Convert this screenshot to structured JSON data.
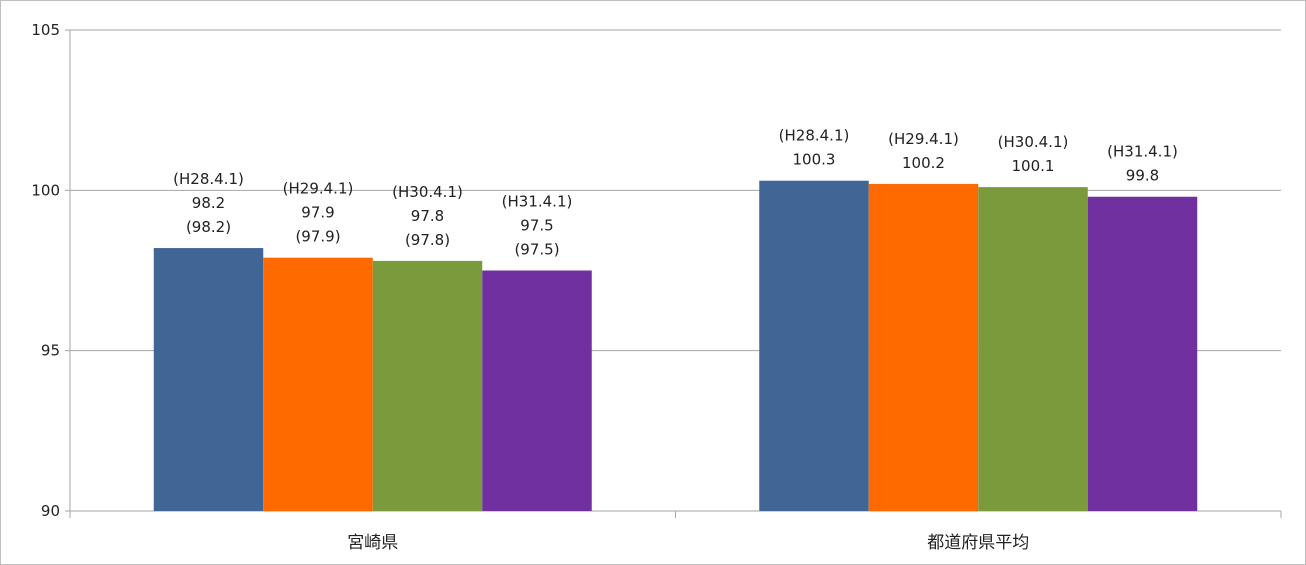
{
  "chart_data": {
    "type": "bar",
    "title": "",
    "xlabel": "",
    "ylabel": "",
    "ylim": [
      90,
      105
    ],
    "yticks": [
      90,
      95,
      100,
      105
    ],
    "grid": true,
    "legend": "none",
    "categories": [
      "宮崎県",
      "都道府県平均"
    ],
    "series": [
      {
        "color": "#3f6695",
        "values": [
          98.2,
          100.3
        ],
        "labels": [
          [
            "(H28.4.1)",
            "98.2",
            "(98.2)"
          ],
          [
            "(H28.4.1)",
            "100.3"
          ]
        ]
      },
      {
        "color": "#ff6a00",
        "values": [
          97.9,
          100.2
        ],
        "labels": [
          [
            "(H29.4.1)",
            "97.9",
            "(97.9)"
          ],
          [
            "(H29.4.1)",
            "100.2"
          ]
        ]
      },
      {
        "color": "#7a9a3c",
        "values": [
          97.8,
          100.1
        ],
        "labels": [
          [
            "(H30.4.1)",
            "97.8",
            "(97.8)"
          ],
          [
            "(H30.4.1)",
            "100.1"
          ]
        ]
      },
      {
        "color": "#7030a0",
        "values": [
          97.5,
          99.8
        ],
        "labels": [
          [
            "(H31.4.1)",
            "97.5",
            "(97.5)"
          ],
          [
            "(H31.4.1)",
            "99.8"
          ]
        ]
      }
    ]
  }
}
